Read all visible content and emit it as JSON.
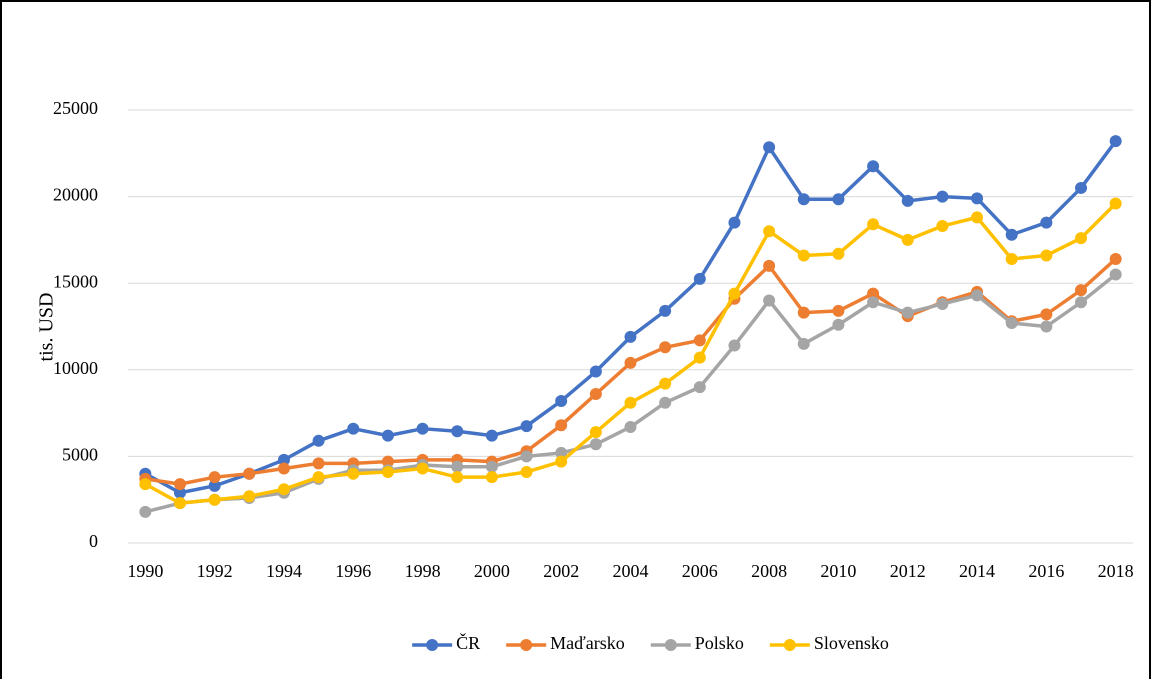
{
  "chart_data": {
    "type": "line",
    "y_label": "tis. USD",
    "x": [
      1990,
      1991,
      1992,
      1993,
      1994,
      1995,
      1996,
      1997,
      1998,
      1999,
      2000,
      2001,
      2002,
      2003,
      2004,
      2005,
      2006,
      2007,
      2008,
      2009,
      2010,
      2011,
      2012,
      2013,
      2014,
      2015,
      2016,
      2017,
      2018
    ],
    "series": [
      {
        "name": "ČR",
        "color": "#4472c4",
        "values": [
          4000,
          2900,
          3300,
          4000,
          4800,
          5900,
          6600,
          6200,
          6600,
          6450,
          6200,
          6750,
          8200,
          9900,
          11900,
          13400,
          15250,
          18500,
          22850,
          19850,
          19850,
          21750,
          19750,
          20000,
          19900,
          17800,
          18500,
          20500,
          23200
        ]
      },
      {
        "name": "Maďarsko",
        "color": "#ed7d31",
        "values": [
          3700,
          3400,
          3800,
          4000,
          4300,
          4600,
          4600,
          4700,
          4800,
          4800,
          4700,
          5300,
          6800,
          8600,
          10400,
          11300,
          11700,
          14100,
          16000,
          13300,
          13400,
          14400,
          13100,
          13900,
          14500,
          12800,
          13200,
          14600,
          16400
        ]
      },
      {
        "name": "Polsko",
        "color": "#a5a5a5",
        "values": [
          1800,
          2300,
          2500,
          2600,
          2900,
          3700,
          4200,
          4200,
          4500,
          4400,
          4400,
          5000,
          5200,
          5700,
          6700,
          8100,
          9000,
          11400,
          14000,
          11500,
          12600,
          13900,
          13300,
          13800,
          14300,
          12700,
          12500,
          13900,
          15500
        ]
      },
      {
        "name": "Slovensko",
        "color": "#ffc000",
        "values": [
          3400,
          2300,
          2500,
          2700,
          3100,
          3800,
          4000,
          4100,
          4300,
          3800,
          3800,
          4100,
          4700,
          6400,
          8100,
          9200,
          10700,
          14400,
          18000,
          16600,
          16700,
          18400,
          17500,
          18300,
          18800,
          16400,
          16600,
          17600,
          19600
        ]
      }
    ],
    "xlim": [
      1989.5,
      2018.5
    ],
    "xticks": [
      1990,
      1992,
      1994,
      1996,
      1998,
      2000,
      2002,
      2004,
      2006,
      2008,
      2010,
      2012,
      2014,
      2016,
      2018
    ],
    "ylim": [
      0,
      25000
    ],
    "yticks": [
      0,
      5000,
      10000,
      15000,
      20000,
      25000
    ],
    "grid": true,
    "legend": "bottom"
  }
}
